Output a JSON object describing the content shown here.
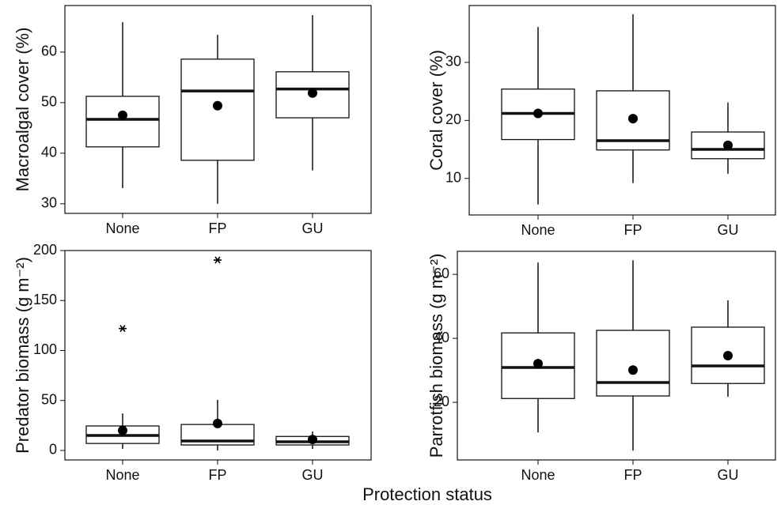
{
  "x_label": "Protection status",
  "chart_data": [
    {
      "type": "box",
      "ylabel": "Macroalgal cover (%)",
      "categories": [
        "None",
        "FP",
        "GU"
      ],
      "ylim": [
        28.1,
        69.2
      ],
      "yticks": [
        30,
        40,
        50,
        60
      ],
      "boxes": [
        {
          "min": 33.1,
          "q1": 41.25,
          "median": 46.7,
          "q3": 51.25,
          "max": 65.9,
          "mean": 47.5,
          "outliers": []
        },
        {
          "min": 30,
          "q1": 38.6,
          "median": 52.3,
          "q3": 58.6,
          "max": 63.4,
          "mean": 49.4,
          "outliers": []
        },
        {
          "min": 36.6,
          "q1": 47.0,
          "median": 52.7,
          "q3": 56.1,
          "max": 67.3,
          "mean": 51.9,
          "outliers": []
        }
      ]
    },
    {
      "type": "box",
      "ylabel": "Coral cover (%)",
      "categories": [
        "None",
        "FP",
        "GU"
      ],
      "ylim": [
        3.7,
        39.8
      ],
      "yticks": [
        10,
        20,
        30
      ],
      "boxes": [
        {
          "min": 5.5,
          "q1": 16.7,
          "median": 21.2,
          "q3": 25.4,
          "max": 36.1,
          "mean": 21.2,
          "outliers": []
        },
        {
          "min": 9.2,
          "q1": 14.9,
          "median": 16.5,
          "q3": 25.1,
          "max": 38.3,
          "mean": 20.3,
          "outliers": []
        },
        {
          "min": 10.8,
          "q1": 13.4,
          "median": 15.0,
          "q3": 18.0,
          "max": 23.1,
          "mean": 15.7,
          "outliers": []
        }
      ]
    },
    {
      "type": "box",
      "ylabel": "Predator biomass (g m⁻²)",
      "categories": [
        "None",
        "FP",
        "GU"
      ],
      "ylim": [
        -9.5,
        200
      ],
      "yticks": [
        0,
        50,
        100,
        150,
        200
      ],
      "boxes": [
        {
          "min": 1.6,
          "q1": 7,
          "median": 15,
          "q3": 24.5,
          "max": 37,
          "mean": 20,
          "outliers": [
            122
          ]
        },
        {
          "min": 0,
          "q1": 5.5,
          "median": 9.5,
          "q3": 26,
          "max": 50.6,
          "mean": 27,
          "outliers": [
            190.5
          ]
        },
        {
          "min": 1.6,
          "q1": 5.5,
          "median": 8.7,
          "q3": 14,
          "max": 19,
          "mean": 11,
          "outliers": []
        }
      ]
    },
    {
      "type": "box",
      "ylabel": "Parrotfish biomass (g m⁻²)",
      "categories": [
        "None",
        "FP",
        "GU"
      ],
      "ylim": [
        2.0,
        67.2
      ],
      "yticks": [
        20,
        40,
        60
      ],
      "boxes": [
        {
          "min": 10.6,
          "q1": 21.2,
          "median": 30.9,
          "q3": 41.7,
          "max": 63.7,
          "mean": 32.1,
          "outliers": []
        },
        {
          "min": 4.9,
          "q1": 22.0,
          "median": 26.2,
          "q3": 42.5,
          "max": 64.4,
          "mean": 30.1,
          "outliers": []
        },
        {
          "min": 21.7,
          "q1": 25.9,
          "median": 31.4,
          "q3": 43.5,
          "max": 51.9,
          "mean": 34.6,
          "outliers": []
        }
      ]
    }
  ]
}
